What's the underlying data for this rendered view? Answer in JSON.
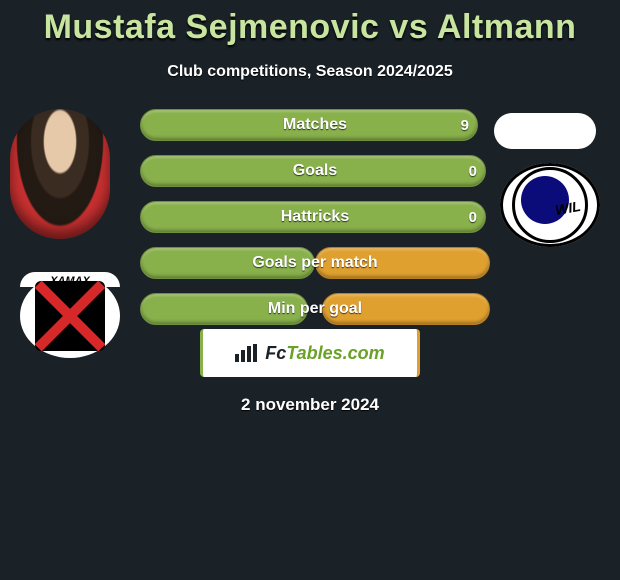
{
  "title": "Mustafa Sejmenovic vs Altmann",
  "subtitle": "Club competitions, Season 2024/2025",
  "left_club_label": "XAMAX",
  "right_club_label": "WIL",
  "rows": [
    {
      "label": "Matches",
      "left_val": "9",
      "right_val": "",
      "left_w": 338,
      "right_w": 0
    },
    {
      "label": "Goals",
      "left_val": "0",
      "right_val": "",
      "left_w": 346,
      "right_w": 0
    },
    {
      "label": "Hattricks",
      "left_val": "0",
      "right_val": "",
      "left_w": 346,
      "right_w": 0
    },
    {
      "label": "Goals per match",
      "left_val": "",
      "right_val": "",
      "left_w": 175,
      "right_w": 175
    },
    {
      "label": "Min per goal",
      "left_val": "",
      "right_val": "",
      "left_w": 168,
      "right_w": 168
    }
  ],
  "colors": {
    "left": "#88b04b",
    "right": "#e0a030",
    "title": "#c8e5a0",
    "bg": "#1a2228"
  },
  "brand_a": "Fc",
  "brand_b": "Tables.com",
  "date": "2 november 2024"
}
